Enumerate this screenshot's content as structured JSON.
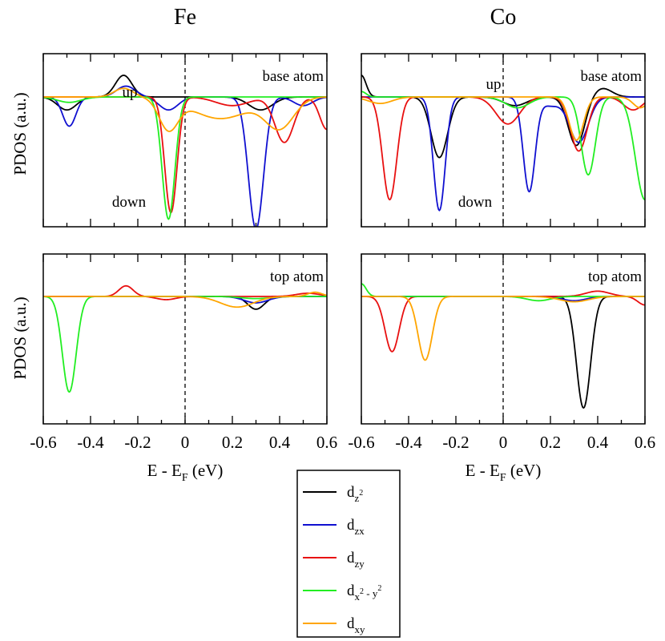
{
  "figure": {
    "column_titles": [
      "Fe",
      "Co"
    ],
    "ylabel": "PDOS (a.u.)",
    "xlabel_main": "E - E",
    "xlabel_sub": "F",
    "xlabel_unit": " (eV)",
    "xticks": [
      -0.6,
      -0.4,
      -0.2,
      0,
      0.2,
      0.4,
      0.6
    ],
    "xtick_labels": [
      "-0.6",
      "-0.4",
      "-0.2",
      "0",
      "0.2",
      "0.4",
      "0.6"
    ],
    "fermi_line": {
      "x": 0,
      "style": "dashed"
    },
    "legend": [
      {
        "key": "dz2",
        "base": "d",
        "sub": "z",
        "sup": "2",
        "tail": "",
        "color": "#000000"
      },
      {
        "key": "dzx",
        "base": "d",
        "sub": "zx",
        "sup": "",
        "tail": "",
        "color": "#1010d0"
      },
      {
        "key": "dzy",
        "base": "d",
        "sub": "zy",
        "sup": "",
        "tail": "",
        "color": "#e81010"
      },
      {
        "key": "dx2y2",
        "base": "d",
        "sub": "x",
        "sup": "2",
        "tail": " - y",
        "tailsup": "2",
        "color": "#22ee22"
      },
      {
        "key": "dxy",
        "base": "d",
        "sub": "xy",
        "sup": "",
        "tail": "",
        "color": "#ffa500"
      }
    ]
  },
  "chart_data": [
    {
      "type": "line",
      "element": "Fe",
      "label": "base atom",
      "annotations": [
        "up",
        "down"
      ],
      "xlim": [
        -0.6,
        0.6
      ],
      "ylim": [
        -1.2,
        0.4
      ],
      "series": [
        {
          "key": "dz2",
          "name": "dz2",
          "color": "#000000",
          "lw": 1.8,
          "base": 0,
          "peaks": [
            [
              -0.26,
              0.2,
              0.035
            ],
            [
              -0.5,
              -0.12,
              0.04
            ],
            [
              0.32,
              -0.12,
              0.05
            ]
          ]
        },
        {
          "key": "dzx",
          "name": "dzx",
          "color": "#1010d0",
          "lw": 1.8,
          "base": 0,
          "peaks": [
            [
              -0.49,
              -0.27,
              0.028
            ],
            [
              -0.25,
              0.1,
              0.04
            ],
            [
              -0.07,
              -0.12,
              0.04
            ],
            [
              0.3,
              -1.22,
              0.032
            ],
            [
              0.5,
              -0.08,
              0.04
            ]
          ]
        },
        {
          "key": "dzy",
          "name": "dzy",
          "color": "#e81010",
          "lw": 1.8,
          "base": 0,
          "peaks": [
            [
              -0.06,
              -1.07,
              0.026
            ],
            [
              0.2,
              -0.08,
              0.07
            ],
            [
              0.42,
              -0.42,
              0.04
            ],
            [
              0.6,
              -0.3,
              0.03
            ]
          ]
        },
        {
          "key": "dx2y2",
          "name": "dx2-y2",
          "color": "#22ee22",
          "lw": 1.8,
          "base": 0,
          "peaks": [
            [
              -0.07,
              -1.13,
              0.027
            ],
            [
              -0.49,
              -0.05,
              0.05
            ]
          ]
        },
        {
          "key": "dxy",
          "name": "dxy",
          "color": "#ffa500",
          "lw": 1.8,
          "base": 0,
          "peaks": [
            [
              -0.07,
              -0.28,
              0.04
            ],
            [
              0.15,
              -0.2,
              0.12
            ],
            [
              0.4,
              -0.28,
              0.06
            ],
            [
              -0.26,
              0.08,
              0.04
            ]
          ]
        }
      ]
    },
    {
      "type": "line",
      "element": "Co",
      "label": "base atom",
      "annotations": [
        "up",
        "down"
      ],
      "xlim": [
        -0.6,
        0.6
      ],
      "ylim": [
        -1.2,
        0.4
      ],
      "series": [
        {
          "key": "dz2",
          "name": "dz2",
          "color": "#000000",
          "lw": 1.8,
          "base": 0,
          "peaks": [
            [
              -0.6,
              0.2,
              0.02
            ],
            [
              -0.27,
              -0.56,
              0.035
            ],
            [
              0.05,
              -0.08,
              0.05
            ],
            [
              0.31,
              -0.45,
              0.035
            ],
            [
              0.42,
              0.08,
              0.04
            ]
          ]
        },
        {
          "key": "dzx",
          "name": "dzx",
          "color": "#1010d0",
          "lw": 1.8,
          "base": 0,
          "peaks": [
            [
              -0.27,
              -1.05,
              0.025
            ],
            [
              0.11,
              -0.87,
              0.025
            ],
            [
              0.32,
              -0.42,
              0.04
            ],
            [
              0.2,
              -0.08,
              0.04
            ]
          ]
        },
        {
          "key": "dzy",
          "name": "dzy",
          "color": "#e81010",
          "lw": 1.8,
          "base": 0,
          "peaks": [
            [
              -0.48,
              -0.95,
              0.03
            ],
            [
              0.02,
              -0.25,
              0.05
            ],
            [
              0.32,
              -0.5,
              0.035
            ],
            [
              0.55,
              -0.12,
              0.04
            ]
          ]
        },
        {
          "key": "dx2y2",
          "name": "dx2-y2",
          "color": "#22ee22",
          "lw": 1.8,
          "base": 0,
          "peaks": [
            [
              0.06,
              -0.1,
              0.05
            ],
            [
              0.36,
              -0.72,
              0.03
            ],
            [
              0.6,
              -0.95,
              0.04
            ],
            [
              -0.6,
              0.05,
              0.02
            ]
          ]
        },
        {
          "key": "dxy",
          "name": "dxy",
          "color": "#ffa500",
          "lw": 1.8,
          "base": 0,
          "peaks": [
            [
              -0.52,
              -0.06,
              0.05
            ],
            [
              0.31,
              -0.4,
              0.03
            ],
            [
              0.58,
              -0.1,
              0.03
            ]
          ]
        }
      ]
    },
    {
      "type": "line",
      "element": "Fe",
      "label": "top atom",
      "annotations": [],
      "xlim": [
        -0.6,
        0.6
      ],
      "ylim": [
        -1.2,
        0.4
      ],
      "series": [
        {
          "key": "dz2",
          "name": "dz2",
          "color": "#000000",
          "lw": 1.8,
          "base": 0,
          "peaks": [
            [
              0.3,
              -0.12,
              0.035
            ]
          ]
        },
        {
          "key": "dzx",
          "name": "dzx",
          "color": "#1010d0",
          "lw": 1.8,
          "base": 0,
          "peaks": [
            [
              0.3,
              -0.06,
              0.05
            ]
          ]
        },
        {
          "key": "dzy",
          "name": "dzy",
          "color": "#e81010",
          "lw": 1.8,
          "base": 0,
          "peaks": [
            [
              -0.25,
              0.1,
              0.03
            ],
            [
              -0.08,
              -0.03,
              0.04
            ],
            [
              0.52,
              0.03,
              0.05
            ]
          ]
        },
        {
          "key": "dx2y2",
          "name": "dx2-y2",
          "color": "#22ee22",
          "lw": 1.8,
          "base": 0,
          "peaks": [
            [
              -0.49,
              -0.9,
              0.029
            ],
            [
              0.3,
              -0.02,
              0.06
            ]
          ]
        },
        {
          "key": "dxy",
          "name": "dxy",
          "color": "#ffa500",
          "lw": 1.8,
          "base": 0,
          "peaks": [
            [
              0.22,
              -0.1,
              0.07
            ],
            [
              0.55,
              0.04,
              0.03
            ]
          ]
        }
      ]
    },
    {
      "type": "line",
      "element": "Co",
      "label": "top atom",
      "annotations": [],
      "xlim": [
        -0.6,
        0.6
      ],
      "ylim": [
        -1.2,
        0.4
      ],
      "series": [
        {
          "key": "dz2",
          "name": "dz2",
          "color": "#000000",
          "lw": 1.8,
          "base": 0,
          "peaks": [
            [
              0.34,
              -1.05,
              0.03
            ]
          ]
        },
        {
          "key": "dzx",
          "name": "dzx",
          "color": "#1010d0",
          "lw": 1.8,
          "base": 0,
          "peaks": [
            [
              0.3,
              -0.04,
              0.05
            ]
          ]
        },
        {
          "key": "dzy",
          "name": "dzy",
          "color": "#e81010",
          "lw": 1.8,
          "base": 0,
          "peaks": [
            [
              -0.47,
              -0.52,
              0.03
            ],
            [
              0.4,
              0.05,
              0.05
            ],
            [
              0.6,
              -0.08,
              0.03
            ]
          ]
        },
        {
          "key": "dx2y2",
          "name": "dx2-y2",
          "color": "#22ee22",
          "lw": 1.8,
          "base": 0,
          "peaks": [
            [
              -0.6,
              0.12,
              0.02
            ],
            [
              0.15,
              -0.04,
              0.05
            ]
          ]
        },
        {
          "key": "dxy",
          "name": "dxy",
          "color": "#ffa500",
          "lw": 1.8,
          "base": 0,
          "peaks": [
            [
              -0.33,
              -0.6,
              0.03
            ],
            [
              0.3,
              -0.05,
              0.06
            ]
          ]
        }
      ]
    }
  ]
}
